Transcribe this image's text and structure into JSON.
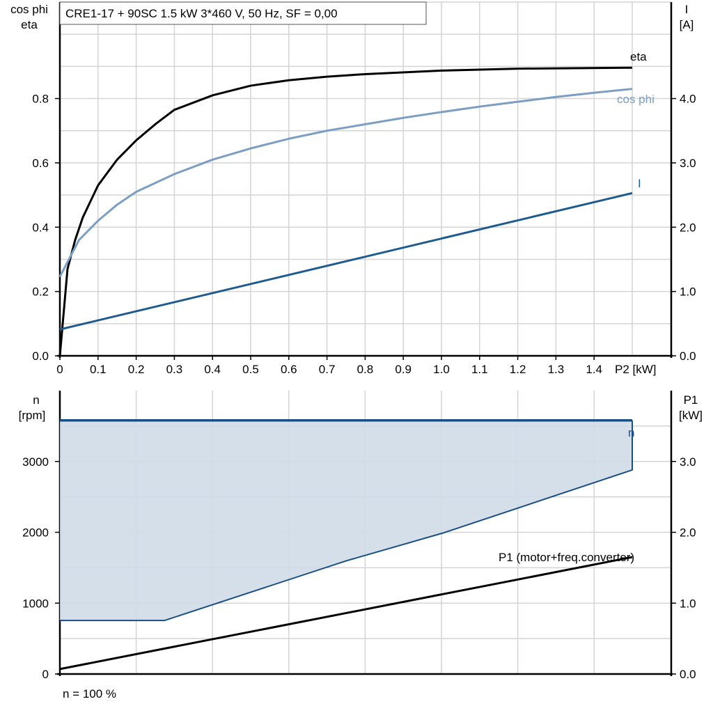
{
  "chart_data": [
    {
      "type": "line",
      "title": "CRE1-17 + 90SC   1.5 kW   3*460 V, 50 Hz, SF = 0,00",
      "xlabel": "P2 [kW]",
      "ylabel_left": [
        "cos phi",
        "eta"
      ],
      "ylabel_right": [
        "I",
        "[A]"
      ],
      "xlim": [
        0,
        1.5
      ],
      "ylim_left": [
        0,
        1.1
      ],
      "ylim_right": [
        0,
        5.5
      ],
      "grid": true,
      "x_ticks": [
        "0",
        "0.1",
        "0.2",
        "0.3",
        "0.4",
        "0.5",
        "0.6",
        "0.7",
        "0.8",
        "0.9",
        "1.0",
        "1.1",
        "1.2",
        "1.3",
        "1.4"
      ],
      "y_ticks_left": [
        "0.0",
        "0.2",
        "0.4",
        "0.6",
        "0.8"
      ],
      "y_ticks_right": [
        "0.0",
        "1.0",
        "2.0",
        "3.0",
        "4.0"
      ],
      "series": [
        {
          "name": "eta",
          "axis": "left",
          "color": "#000000",
          "x": [
            0,
            0.02,
            0.04,
            0.06,
            0.1,
            0.15,
            0.2,
            0.25,
            0.3,
            0.4,
            0.5,
            0.6,
            0.7,
            0.8,
            1.0,
            1.2,
            1.5
          ],
          "y": [
            0,
            0.27,
            0.36,
            0.43,
            0.53,
            0.61,
            0.67,
            0.72,
            0.765,
            0.81,
            0.84,
            0.857,
            0.868,
            0.876,
            0.887,
            0.893,
            0.896
          ]
        },
        {
          "name": "cos phi",
          "axis": "left",
          "color": "#7b9ec2",
          "x": [
            0,
            0.05,
            0.1,
            0.15,
            0.2,
            0.3,
            0.4,
            0.5,
            0.6,
            0.7,
            0.8,
            0.9,
            1.0,
            1.1,
            1.2,
            1.3,
            1.4,
            1.5
          ],
          "y": [
            0.246,
            0.36,
            0.42,
            0.47,
            0.51,
            0.565,
            0.61,
            0.645,
            0.675,
            0.7,
            0.72,
            0.74,
            0.758,
            0.775,
            0.79,
            0.805,
            0.818,
            0.83
          ]
        },
        {
          "name": "I",
          "axis": "right",
          "color": "#1f5a8f",
          "x": [
            0,
            1.5
          ],
          "y": [
            0.41,
            2.53
          ]
        }
      ]
    },
    {
      "type": "area",
      "ylabel_left": [
        "n",
        "[rpm]"
      ],
      "ylabel_right": [
        "P1",
        "[kW]"
      ],
      "xlim": [
        0,
        1.5
      ],
      "ylim_left": [
        0,
        4000
      ],
      "ylim_right": [
        0,
        4.0
      ],
      "grid": true,
      "y_ticks_left": [
        "0",
        "1000",
        "2000",
        "3000"
      ],
      "y_ticks_right": [
        "0.0",
        "1.0",
        "2.0",
        "3.0"
      ],
      "footnote": "n = 100 %",
      "series": [
        {
          "name": "n",
          "axis": "left",
          "color": "#1a4f86",
          "x": [
            0,
            1.5
          ],
          "y": [
            3580,
            3580
          ]
        },
        {
          "name": "",
          "axis": "right",
          "color": "#1a4f86",
          "fill": "#d0dce8",
          "x": [
            0,
            0.274,
            0.752,
            1.004,
            1.5
          ],
          "y": [
            0.755,
            0.755,
            1.6,
            1.99,
            2.88
          ]
        },
        {
          "name": "P1 (motor+freq.converter)",
          "axis": "right",
          "color": "#000000",
          "x": [
            0,
            1.5
          ],
          "y": [
            0.07,
            1.65
          ]
        }
      ]
    }
  ]
}
